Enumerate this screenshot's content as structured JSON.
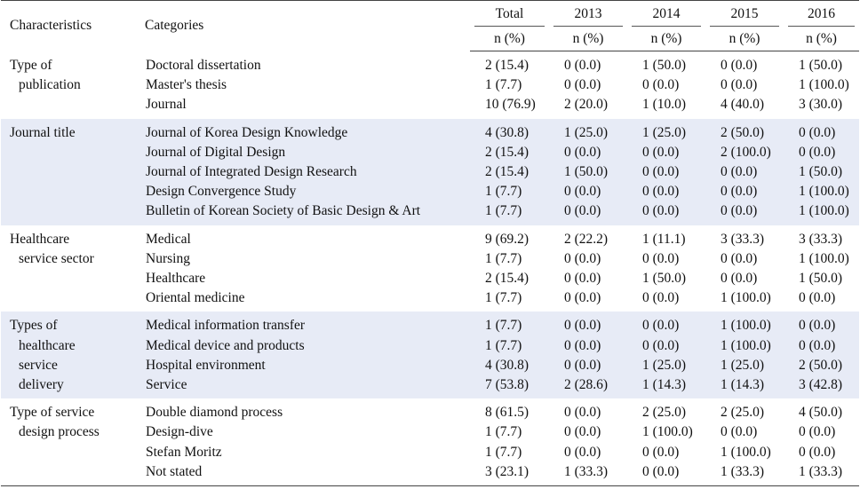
{
  "header": {
    "characteristics": "Characteristics",
    "categories": "Categories",
    "columns": [
      "Total",
      "2013",
      "2014",
      "2015",
      "2016"
    ],
    "subheader": [
      "n (%)",
      "n (%)",
      "n (%)",
      "n (%)",
      "n (%)"
    ]
  },
  "groups": [
    {
      "label_lines": [
        "Type of",
        "publication"
      ],
      "categories": [
        "Doctoral dissertation",
        "Master's thesis",
        "Journal"
      ],
      "values": [
        [
          "2 (15.4)",
          "0 (0.0)",
          "1 (50.0)",
          "0 (0.0)",
          "1 (50.0)"
        ],
        [
          "1 (7.7)",
          "0 (0.0)",
          "0 (0.0)",
          "0 (0.0)",
          "1 (100.0)"
        ],
        [
          "10 (76.9)",
          "2 (20.0)",
          "1 (10.0)",
          "4 (40.0)",
          "3 (30.0)"
        ]
      ]
    },
    {
      "label_lines": [
        "Journal title"
      ],
      "categories": [
        "Journal of Korea Design Knowledge",
        "Journal of Digital Design",
        "Journal of Integrated Design Research",
        "Design Convergence Study",
        "Bulletin of Korean Society of Basic Design & Art"
      ],
      "values": [
        [
          "4 (30.8)",
          "1 (25.0)",
          "1 (25.0)",
          "2 (50.0)",
          "0 (0.0)"
        ],
        [
          "2 (15.4)",
          "0 (0.0)",
          "0 (0.0)",
          "2 (100.0)",
          "0 (0.0)"
        ],
        [
          "2 (15.4)",
          "1 (50.0)",
          "0 (0.0)",
          "0 (0.0)",
          "1 (50.0)"
        ],
        [
          "1 (7.7)",
          "0 (0.0)",
          "0 (0.0)",
          "0 (0.0)",
          "1 (100.0)"
        ],
        [
          "1 (7.7)",
          "0 (0.0)",
          "0 (0.0)",
          "0 (0.0)",
          "1 (100.0)"
        ]
      ]
    },
    {
      "label_lines": [
        "Healthcare",
        "service sector"
      ],
      "categories": [
        "Medical",
        "Nursing",
        "Healthcare",
        "Oriental medicine"
      ],
      "values": [
        [
          "9 (69.2)",
          "2 (22.2)",
          "1 (11.1)",
          "3 (33.3)",
          "3 (33.3)"
        ],
        [
          "1 (7.7)",
          "0 (0.0)",
          "0 (0.0)",
          "0 (0.0)",
          "1 (100.0)"
        ],
        [
          "2 (15.4)",
          "0 (0.0)",
          "1 (50.0)",
          "0 (0.0)",
          "1 (50.0)"
        ],
        [
          "1 (7.7)",
          "0 (0.0)",
          "0 (0.0)",
          "1 (100.0)",
          "0 (0.0)"
        ]
      ]
    },
    {
      "label_lines": [
        "Types of",
        "healthcare",
        "service",
        "delivery"
      ],
      "categories": [
        "Medical information transfer",
        "Medical device and products",
        "Hospital environment",
        "Service"
      ],
      "values": [
        [
          "1 (7.7)",
          "0 (0.0)",
          "0 (0.0)",
          "1 (100.0)",
          "0 (0.0)"
        ],
        [
          "1 (7.7)",
          "0 (0.0)",
          "0 (0.0)",
          "1 (100.0)",
          "0 (0.0)"
        ],
        [
          "4 (30.8)",
          "0 (0.0)",
          "1 (25.0)",
          "1 (25.0)",
          "2 (50.0)"
        ],
        [
          "7 (53.8)",
          "2 (28.6)",
          "1 (14.3)",
          "1 (14.3)",
          "3 (42.8)"
        ]
      ]
    },
    {
      "label_lines": [
        "Type of service",
        "design process"
      ],
      "categories": [
        "Double diamond process",
        "Design-dive",
        "Stefan Moritz",
        "Not stated"
      ],
      "values": [
        [
          "8 (61.5)",
          "0 (0.0)",
          "2 (25.0)",
          "2 (25.0)",
          "4 (50.0)"
        ],
        [
          "1 (7.7)",
          "0 (0.0)",
          "1 (100.0)",
          "0 (0.0)",
          "0 (0.0)"
        ],
        [
          "1 (7.7)",
          "0 (0.0)",
          "0 (0.0)",
          "1 (100.0)",
          "0 (0.0)"
        ],
        [
          "3 (23.1)",
          "1 (33.3)",
          "0 (0.0)",
          "1 (33.3)",
          "1 (33.3)"
        ]
      ]
    }
  ],
  "colors": {
    "shaded_band": "#e7ebf6",
    "rule": "#444444"
  }
}
